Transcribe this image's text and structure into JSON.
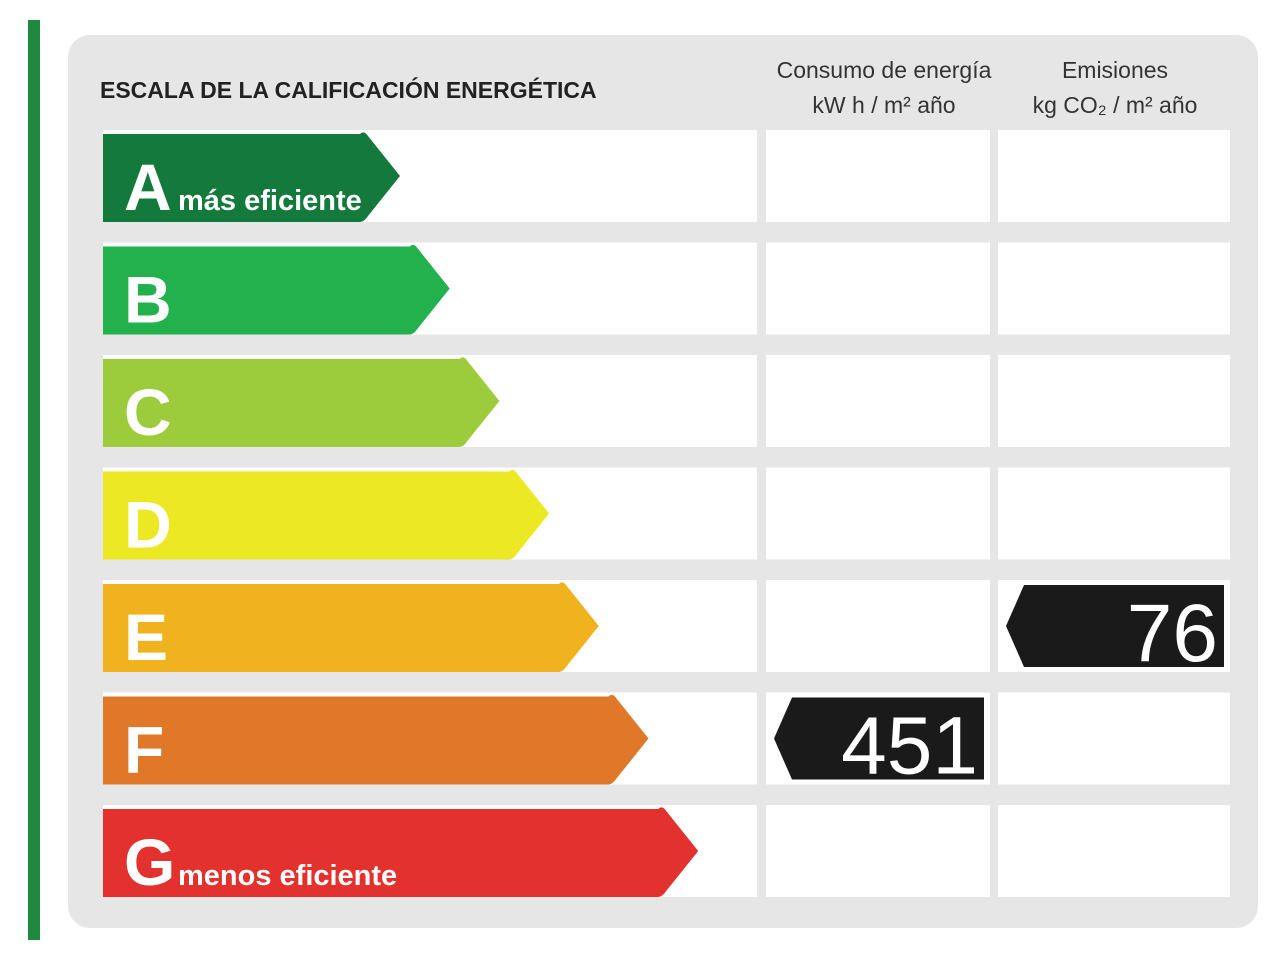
{
  "title": "ESCALA DE LA CALIFICACIÓN ENERGÉTICA",
  "columns": [
    {
      "title": "Consumo de energía",
      "unit": "kW h / m² año"
    },
    {
      "title": "Emisiones",
      "unit": "kg CO₂ / m² año"
    }
  ],
  "grades": [
    {
      "letter": "A",
      "note": "más eficiente",
      "color": "#147a3c"
    },
    {
      "letter": "B",
      "color": "#22b14c"
    },
    {
      "letter": "C",
      "color": "#9ccb3b"
    },
    {
      "letter": "D",
      "color": "#ece823"
    },
    {
      "letter": "E",
      "color": "#f0b31f"
    },
    {
      "letter": "F",
      "color": "#e0782a"
    },
    {
      "letter": "G",
      "note": "menos eficiente",
      "color": "#e3312d"
    }
  ],
  "results": [
    {
      "grade": "F",
      "value": 451
    },
    {
      "grade": "E",
      "value": 76
    }
  ]
}
